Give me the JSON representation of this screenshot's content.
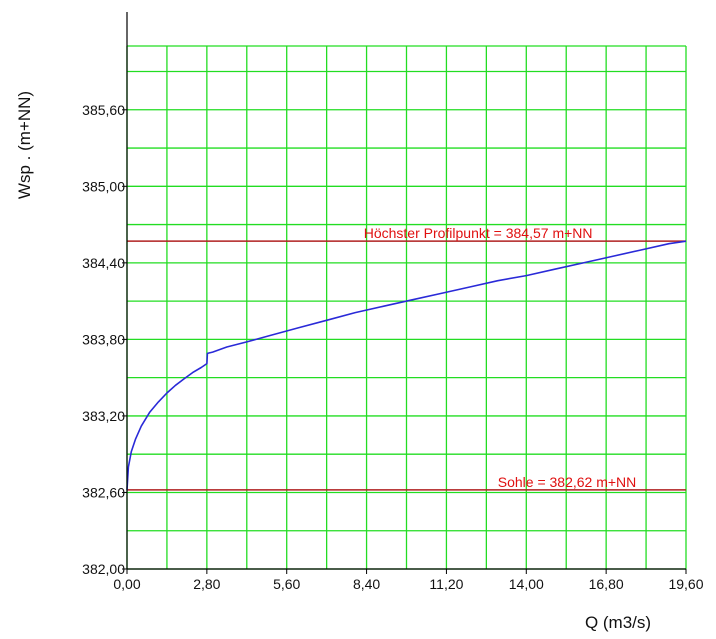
{
  "chart_data": {
    "type": "line",
    "xlabel": "Q (m3/s)",
    "ylabel": "Wsp . (m+NN)",
    "xlim": [
      0,
      19.6
    ],
    "ylim": [
      382.0,
      386.1
    ],
    "x_ticks": [
      "0,00",
      "2,80",
      "5,60",
      "8,40",
      "11,20",
      "14,00",
      "16,80",
      "19,60"
    ],
    "y_ticks": [
      "382,00",
      "382,60",
      "383,20",
      "383,80",
      "384,40",
      "385,00",
      "385,60"
    ],
    "x_ticks_values": [
      0,
      2.8,
      5.6,
      8.4,
      11.2,
      14.0,
      16.8,
      19.6
    ],
    "y_ticks_values": [
      382.0,
      382.6,
      383.2,
      383.8,
      384.4,
      385.0,
      385.6
    ],
    "grid": true,
    "grid_color": "#22dd22",
    "series": [
      {
        "color": "#2a2ad8",
        "x": [
          0,
          0.05,
          0.15,
          0.3,
          0.5,
          0.8,
          1.1,
          1.4,
          1.7,
          2.0,
          2.3,
          2.6,
          2.8,
          2.82,
          3.0,
          3.5,
          4.2,
          5.0,
          6.0,
          7.0,
          8.0,
          9.0,
          10.0,
          11.0,
          12.0,
          13.0,
          14.0,
          15.0,
          16.0,
          17.0,
          18.0,
          19.0,
          19.6
        ],
        "y": [
          382.62,
          382.8,
          382.92,
          383.02,
          383.12,
          383.23,
          383.31,
          383.38,
          383.44,
          383.49,
          383.54,
          383.58,
          383.61,
          383.69,
          383.7,
          383.74,
          383.78,
          383.83,
          383.89,
          383.95,
          384.01,
          384.06,
          384.11,
          384.16,
          384.21,
          384.26,
          384.3,
          384.35,
          384.4,
          384.45,
          384.5,
          384.55,
          384.57
        ]
      }
    ],
    "reference_lines": [
      {
        "y": 384.57,
        "label": "Höchster Profilpunkt = 384,57 m+NN",
        "color": "#b02020",
        "label_color": "#e01010",
        "label_x": 8.3
      },
      {
        "y": 382.62,
        "label": "Sohle = 382,62 m+NN",
        "color": "#b02020",
        "label_color": "#e01010",
        "label_x": 13.0
      }
    ]
  }
}
